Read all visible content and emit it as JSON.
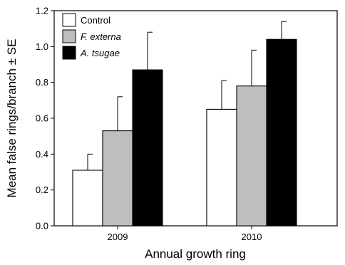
{
  "chart_data": {
    "type": "bar",
    "title": "",
    "xlabel": "Annual growth ring",
    "ylabel": "Mean false rings/branch ± SE",
    "categories": [
      "2009",
      "2010"
    ],
    "ylim": [
      0,
      1.2
    ],
    "yticks": [
      "0.0",
      "0.2",
      "0.4",
      "0.6",
      "0.8",
      "1.0",
      "1.2"
    ],
    "grid": false,
    "legend_position": "top-left",
    "series": [
      {
        "name": "Control",
        "italic": false,
        "color": "#ffffff",
        "values": [
          0.31,
          0.65
        ],
        "errors": [
          0.09,
          0.16
        ]
      },
      {
        "name": "F. externa",
        "italic": true,
        "color": "#bebebe",
        "values": [
          0.53,
          0.78
        ],
        "errors": [
          0.19,
          0.2
        ]
      },
      {
        "name": "A. tsugae",
        "italic": true,
        "color": "#000000",
        "values": [
          0.87,
          1.04
        ],
        "errors": [
          0.21,
          0.1
        ]
      }
    ]
  }
}
